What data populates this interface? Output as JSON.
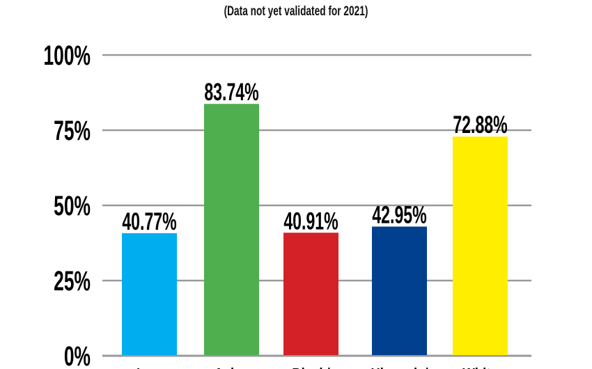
{
  "chart_data": {
    "type": "bar",
    "title": "",
    "subtitle": "(Data not yet validated for 2021)",
    "categories": [
      "Low",
      "Asian",
      "Black/",
      "Hispanic/",
      "White"
    ],
    "values": [
      40.77,
      83.74,
      40.91,
      42.95,
      72.88
    ],
    "data_labels": [
      "40.77%",
      "83.74%",
      "40.91%",
      "42.95%",
      "72.88%"
    ],
    "colors": [
      "#00aeef",
      "#4fae4e",
      "#d42127",
      "#00408f",
      "#ffee00"
    ],
    "yticks": [
      0,
      25,
      50,
      75,
      100
    ],
    "ytick_labels": [
      "0%",
      "25%",
      "50%",
      "75%",
      "100%"
    ],
    "ylim": [
      0,
      100
    ],
    "xlabel": "",
    "ylabel": "",
    "grid": true,
    "grid_color": "#999999"
  }
}
